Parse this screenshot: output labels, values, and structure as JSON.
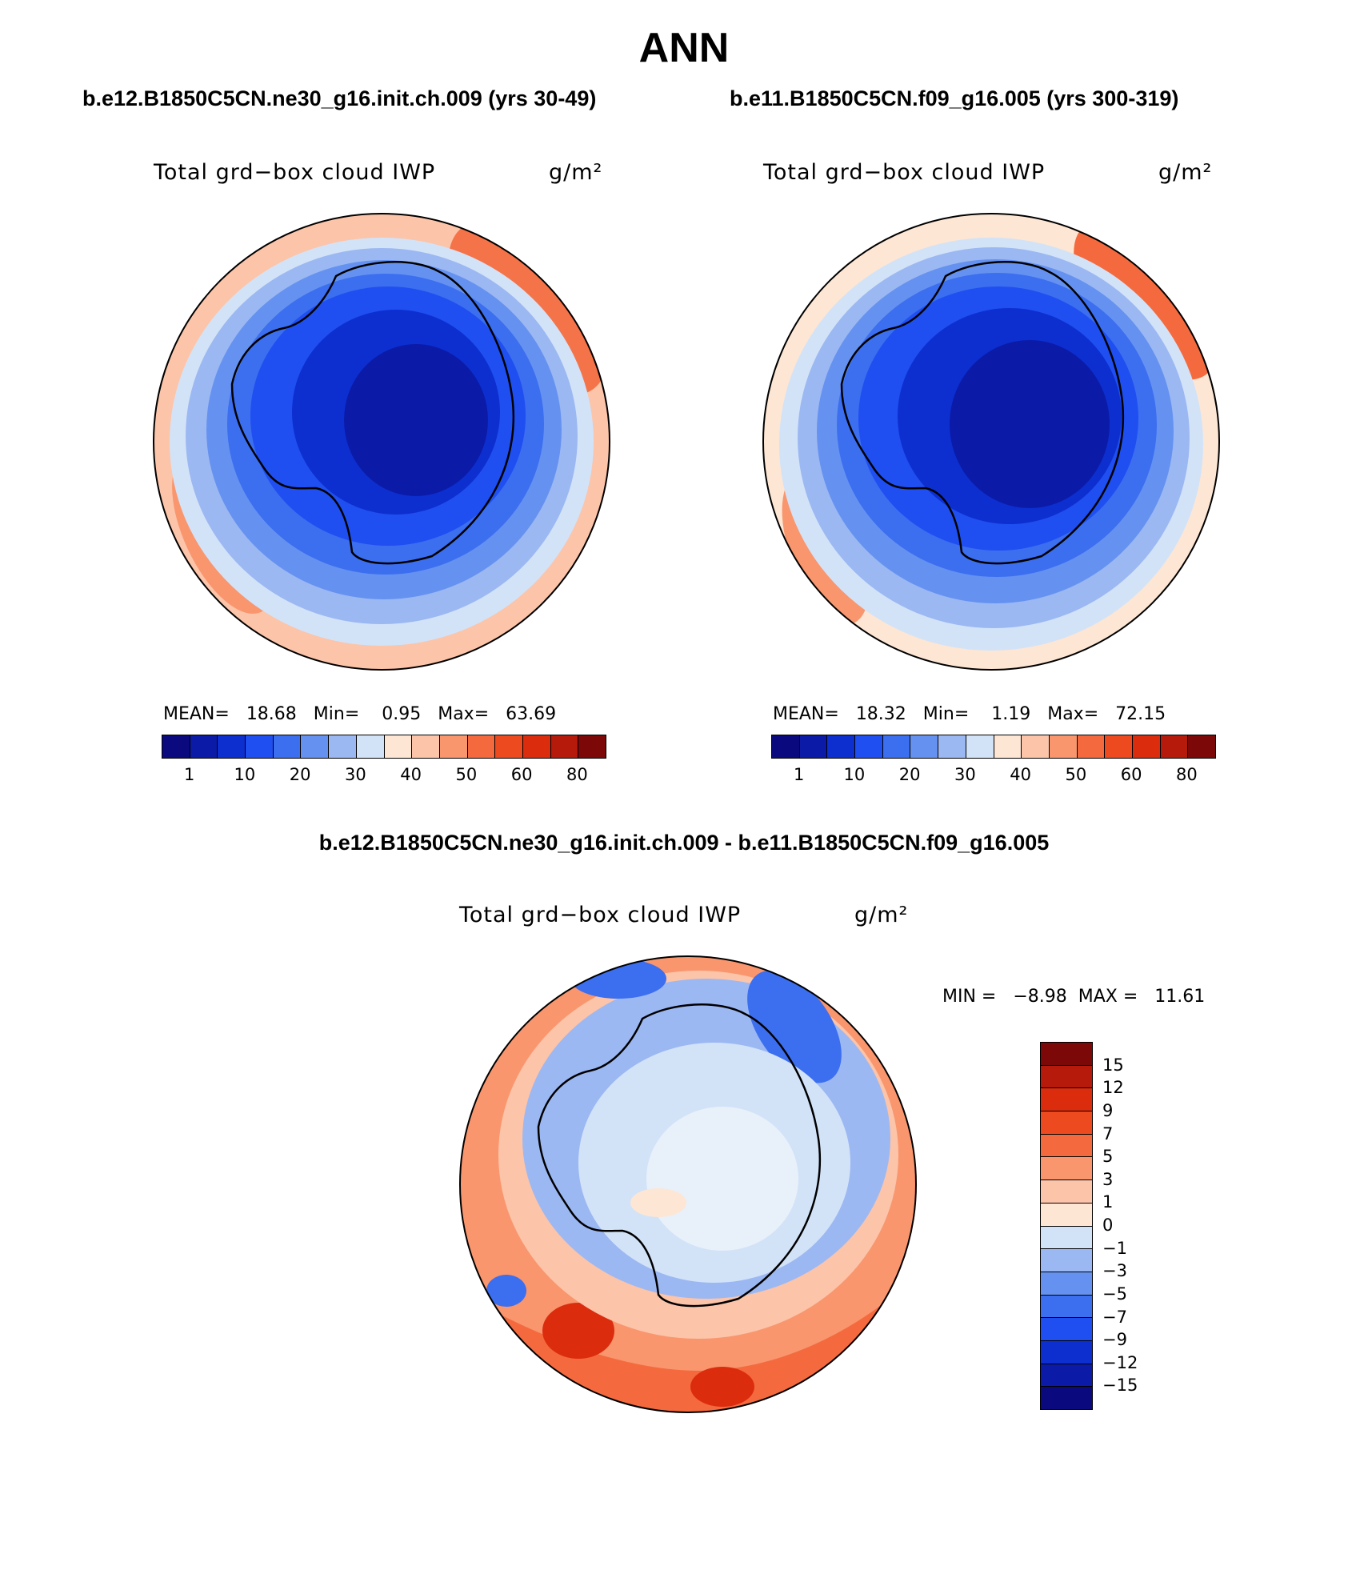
{
  "title": "ANN",
  "colors": {
    "abs_scale": [
      "#0a0a7e",
      "#0b1ba8",
      "#0d2fd0",
      "#1f4ff0",
      "#3c6ef0",
      "#6592f0",
      "#9cb8f2",
      "#d2e3f8",
      "#fde6d4",
      "#fcc4a9",
      "#f9966e",
      "#f46a3e",
      "#ee4a1f",
      "#dc2c0e",
      "#b51a0a",
      "#7d0808"
    ],
    "diff_scale": [
      "#0a0a7e",
      "#0b1ba8",
      "#0d2fd0",
      "#1f4ff0",
      "#3c6ef0",
      "#6592f0",
      "#9cb8f2",
      "#d2e3f8",
      "#fde6d4",
      "#fcc4a9",
      "#f9966e",
      "#f46a3e",
      "#ee4a1f",
      "#dc2c0e",
      "#b51a0a",
      "#7d0808"
    ]
  },
  "panels": [
    {
      "case_title": "b.e12.B1850C5CN.ne30_g16.init.ch.009 (yrs 30-49)",
      "var_label": "Total grd−box cloud IWP",
      "units": "g/m²",
      "stats": {
        "mean_label": "MEAN=",
        "mean": "18.68",
        "min_label": "Min=",
        "min": "0.95",
        "max_label": "Max=",
        "max": "63.69"
      },
      "colorbar_ticks": [
        "1",
        "10",
        "20",
        "30",
        "40",
        "50",
        "60",
        "80"
      ]
    },
    {
      "case_title": "b.e11.B1850C5CN.f09_g16.005 (yrs 300-319)",
      "var_label": "Total grd−box cloud IWP",
      "units": "g/m²",
      "stats": {
        "mean_label": "MEAN=",
        "mean": "18.32",
        "min_label": "Min=",
        "min": "1.19",
        "max_label": "Max=",
        "max": "72.15"
      },
      "colorbar_ticks": [
        "1",
        "10",
        "20",
        "30",
        "40",
        "50",
        "60",
        "80"
      ]
    }
  ],
  "diff": {
    "title": "b.e12.B1850C5CN.ne30_g16.init.ch.009 - b.e11.B1850C5CN.f09_g16.005",
    "var_label": "Total grd−box cloud IWP",
    "units": "g/m²",
    "stats": {
      "min_label": "MIN =",
      "min": "−8.98",
      "max_label": "MAX =",
      "max": "11.61"
    },
    "colorbar_ticks": [
      "15",
      "12",
      "9",
      "7",
      "5",
      "3",
      "1",
      "0",
      "−1",
      "−3",
      "−5",
      "−7",
      "−9",
      "−12",
      "−15"
    ]
  }
}
